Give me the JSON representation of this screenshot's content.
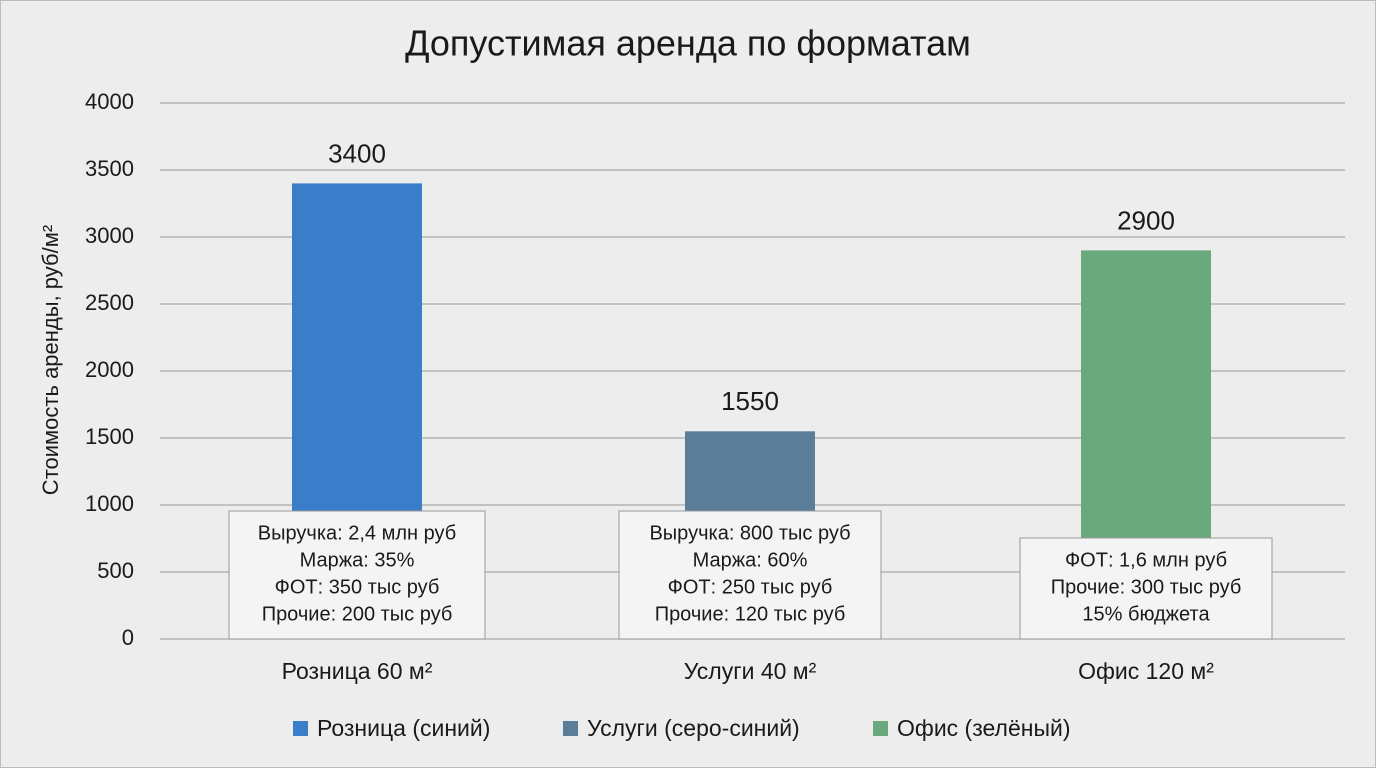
{
  "chart_data": {
    "type": "bar",
    "title": "Допустимая аренда по форматам",
    "y_label": "Стоимость аренды, руб/м²",
    "categories": [
      "Розница 60 м²",
      "Услуги 40 м²",
      "Офис 120 м²"
    ],
    "values": [
      3400,
      1550,
      2900
    ],
    "colors": [
      "#3a7dc8",
      "#5a7e99",
      "#6aa97b"
    ],
    "legend": [
      "Розница (синий)",
      "Услуги (серо-синий)",
      "Офис (зелёный)"
    ],
    "annotations": [
      [
        "Выручка: 2,4 млн руб",
        "Маржа: 35%",
        "ФОТ: 350 тыс руб",
        "Прочие: 200 тыс руб"
      ],
      [
        "Выручка: 800 тыс руб",
        "Маржа: 60%",
        "ФОТ: 250 тыс руб",
        "Прочие: 120 тыс руб"
      ],
      [
        "ФОТ: 1,6 млн руб",
        "Прочие: 300 тыс руб",
        "15% бюджета"
      ]
    ],
    "ylim": [
      0,
      4000
    ],
    "yticks": [
      0,
      500,
      1000,
      1500,
      2000,
      2500,
      3000,
      3500,
      4000
    ],
    "grid": true
  }
}
